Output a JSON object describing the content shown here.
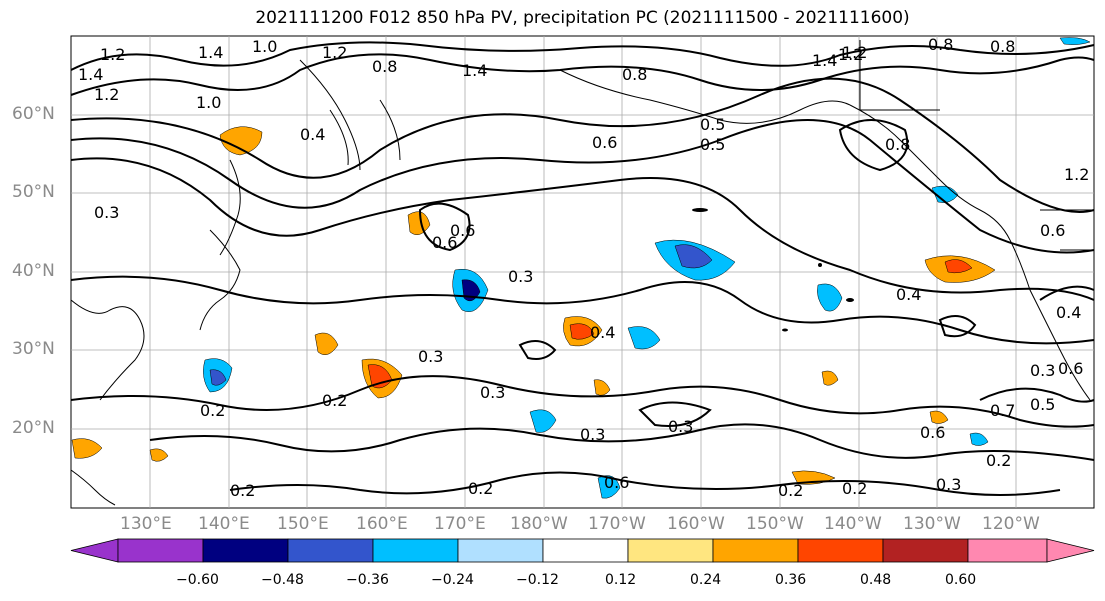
{
  "title": "2021111200 F012 850 hPa PV, precipitation PC (2021111500 - 2021111600)",
  "map": {
    "lat_labels": [
      "60°N",
      "50°N",
      "40°N",
      "30°N",
      "20°N"
    ],
    "lon_labels": [
      "130°E",
      "140°E",
      "150°E",
      "160°E",
      "170°E",
      "180°W",
      "170°W",
      "160°W",
      "150°W",
      "140°W",
      "130°W",
      "120°W"
    ],
    "contour_labels": [
      "1.4",
      "1.2",
      "1.4",
      "1.0",
      "1.2",
      "0.8",
      "1.4",
      "1.2",
      "0.8",
      "0.6",
      "0.8",
      "1.4",
      "1.2",
      "0.8",
      "0.4",
      "0.3",
      "0.6",
      "1.0",
      "0.5",
      "0.8",
      "1.2",
      "0.3",
      "0.6",
      "0.5",
      "0.6",
      "0.3",
      "0.4",
      "0.4",
      "0.4",
      "0.3",
      "0.2",
      "0.3",
      "0.2",
      "0.3",
      "0.3",
      "0.6",
      "0.7",
      "0.5",
      "0.2",
      "0.2",
      "0.2",
      "0.2",
      "0.2",
      "0.3",
      "0.6",
      "1.2",
      "0.6"
    ]
  },
  "colorbar": {
    "colors": [
      "#9933cc",
      "#000080",
      "#3355cc",
      "#00bfff",
      "#b0e0ff",
      "#ffffff",
      "#ffe680",
      "#ffa500",
      "#ff4500",
      "#b22222",
      "#ff88b0"
    ],
    "tick_labels": [
      "−0.60",
      "−0.48",
      "−0.36",
      "−0.24",
      "−0.12",
      "0.12",
      "0.24",
      "0.36",
      "0.48",
      "0.60"
    ]
  }
}
